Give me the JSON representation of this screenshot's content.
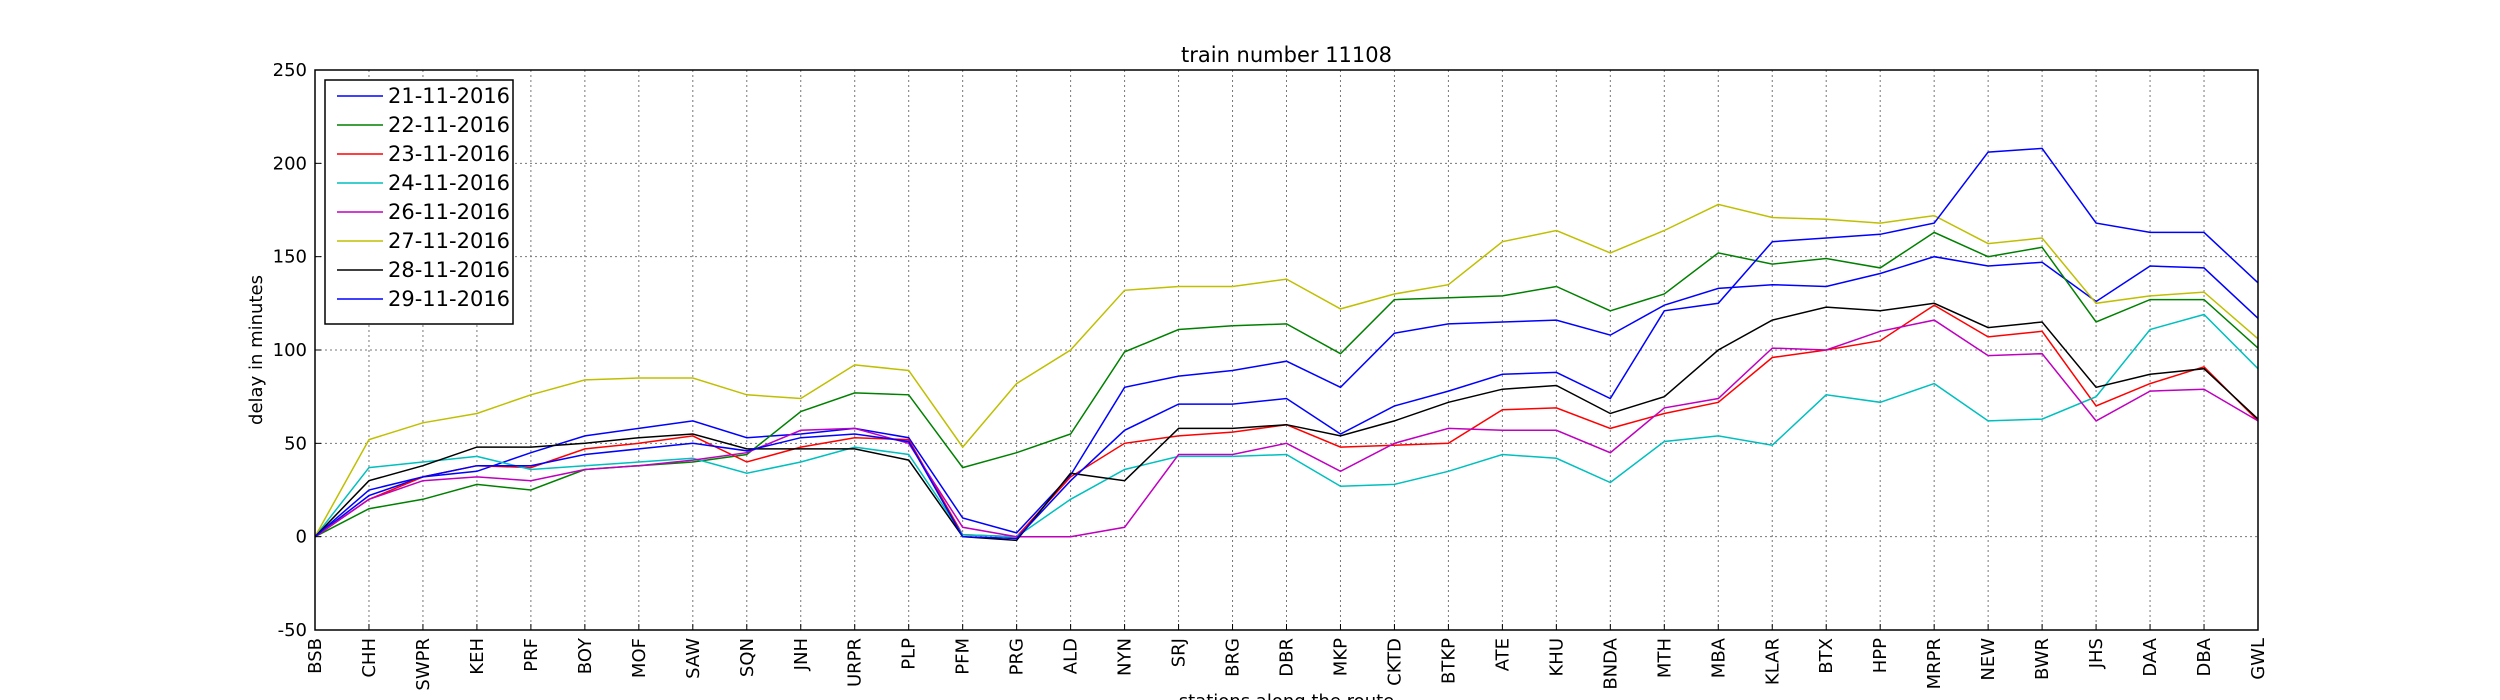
{
  "chart_data": {
    "type": "line",
    "title": "train number 11108",
    "xlabel": "stations along the route",
    "ylabel": "delay in minutes",
    "ylim": [
      -50,
      250
    ],
    "yticks": [
      -50,
      0,
      50,
      100,
      150,
      200,
      250
    ],
    "grid": true,
    "legend_position": "top-left",
    "categories": [
      "BSB",
      "CHH",
      "SWPR",
      "KEH",
      "PRF",
      "BOY",
      "MOF",
      "SAW",
      "SQN",
      "JNH",
      "URPR",
      "PLP",
      "PFM",
      "PRG",
      "ALD",
      "NYN",
      "SRJ",
      "BRG",
      "DBR",
      "MKP",
      "CKTD",
      "BTKP",
      "ATE",
      "KHU",
      "BNDA",
      "MTH",
      "MBA",
      "KLAR",
      "BTX",
      "HPP",
      "MRPR",
      "NEW",
      "BWR",
      "JHS",
      "DAA",
      "DBA",
      "GWL"
    ],
    "series": [
      {
        "name": "21-11-2016",
        "color": "#0000ff",
        "values": [
          0,
          22,
          32,
          35,
          45,
          54,
          58,
          62,
          53,
          55,
          58,
          53,
          10,
          2,
          33,
          80,
          86,
          89,
          94,
          80,
          109,
          114,
          115,
          116,
          108,
          124,
          133,
          135,
          134,
          141,
          150,
          145,
          147,
          126,
          145,
          144,
          117
        ]
      },
      {
        "name": "22-11-2016",
        "color": "#008000",
        "values": [
          0,
          15,
          20,
          28,
          25,
          36,
          38,
          40,
          44,
          67,
          77,
          76,
          37,
          45,
          55,
          99,
          111,
          113,
          114,
          98,
          127,
          128,
          129,
          134,
          121,
          130,
          152,
          146,
          149,
          144,
          163,
          150,
          155,
          115,
          127,
          127,
          101
        ]
      },
      {
        "name": "23-11-2016",
        "color": "#ff0000",
        "values": [
          0,
          20,
          32,
          38,
          37,
          47,
          50,
          54,
          40,
          48,
          53,
          52,
          1,
          0,
          32,
          50,
          54,
          56,
          60,
          48,
          49,
          50,
          68,
          69,
          58,
          66,
          72,
          96,
          100,
          105,
          124,
          107,
          110,
          70,
          82,
          91,
          62
        ]
      },
      {
        "name": "24-11-2016",
        "color": "#00bfbf",
        "values": [
          0,
          37,
          40,
          43,
          36,
          38,
          40,
          42,
          34,
          40,
          48,
          44,
          1,
          0,
          20,
          36,
          43,
          43,
          44,
          27,
          28,
          35,
          44,
          42,
          29,
          51,
          54,
          49,
          76,
          72,
          82,
          62,
          63,
          75,
          111,
          119,
          90
        ]
      },
      {
        "name": "26-11-2016",
        "color": "#bf00bf",
        "values": [
          0,
          20,
          30,
          32,
          30,
          36,
          38,
          41,
          45,
          57,
          58,
          50,
          5,
          0,
          0,
          5,
          44,
          44,
          50,
          35,
          50,
          58,
          57,
          57,
          45,
          69,
          74,
          101,
          100,
          110,
          116,
          97,
          98,
          62,
          78,
          79,
          62
        ]
      },
      {
        "name": "27-11-2016",
        "color": "#bfbf00",
        "values": [
          0,
          52,
          61,
          66,
          76,
          84,
          85,
          85,
          76,
          74,
          92,
          89,
          48,
          82,
          100,
          132,
          134,
          134,
          138,
          122,
          130,
          135,
          158,
          164,
          152,
          164,
          178,
          171,
          170,
          168,
          172,
          157,
          160,
          125,
          129,
          131,
          106
        ]
      },
      {
        "name": "28-11-2016",
        "color": "#000000",
        "values": [
          0,
          30,
          38,
          48,
          48,
          50,
          53,
          55,
          47,
          47,
          47,
          41,
          0,
          -2,
          34,
          30,
          58,
          58,
          60,
          54,
          62,
          72,
          79,
          81,
          66,
          75,
          100,
          116,
          123,
          121,
          125,
          112,
          115,
          80,
          87,
          90,
          63
        ]
      },
      {
        "name": "29-11-2016",
        "color": "#0000ff",
        "values": [
          0,
          25,
          32,
          38,
          38,
          44,
          47,
          50,
          46,
          53,
          55,
          51,
          0,
          -1,
          30,
          57,
          71,
          71,
          74,
          55,
          70,
          78,
          87,
          88,
          74,
          121,
          125,
          158,
          160,
          162,
          168,
          206,
          208,
          168,
          163,
          163,
          136
        ]
      }
    ]
  }
}
